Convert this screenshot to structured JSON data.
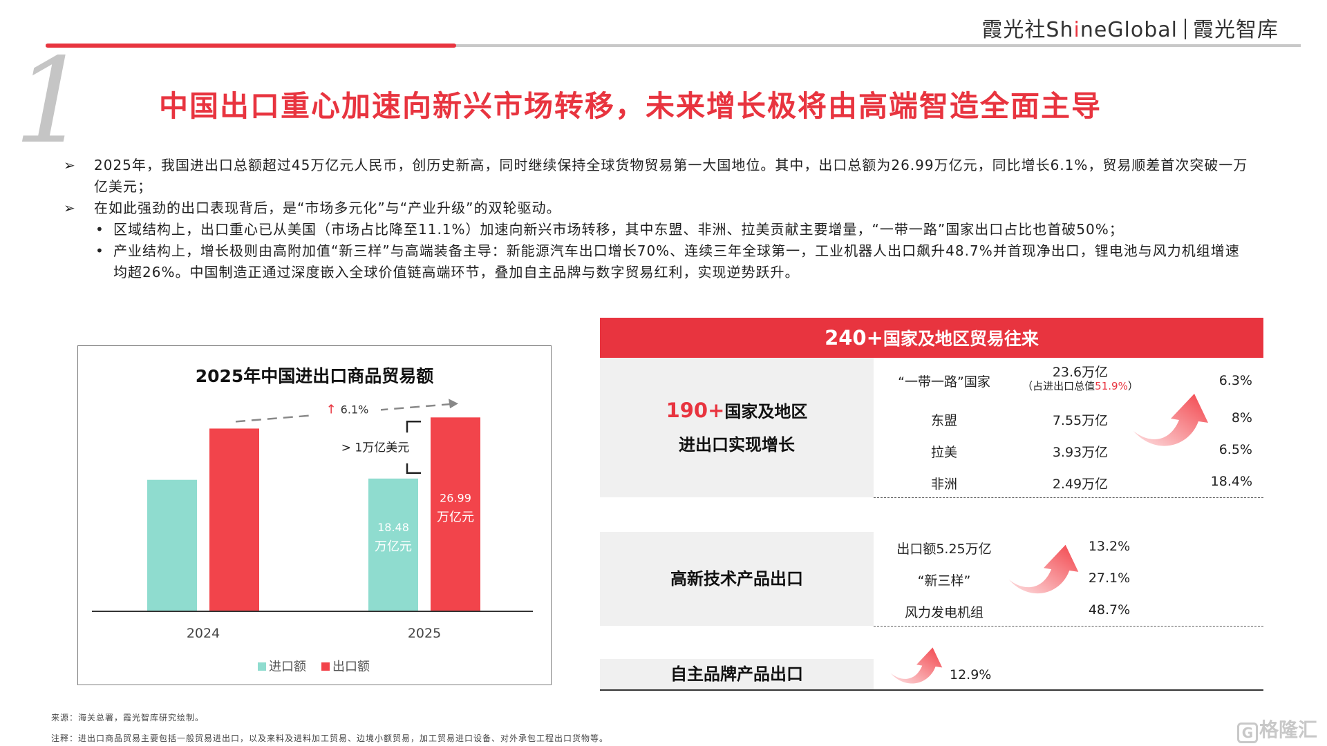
{
  "header": {
    "brand_cn": "霞光社",
    "brand_en_pre": "Sh",
    "brand_en_i": "i",
    "brand_en_post": "neGlobal",
    "brand_think": "霞光智库",
    "accent": "#e8343f"
  },
  "section_number": "1",
  "title": "中国出口重心加速向新兴市场转移，未来增长极将由高端智造全面主导",
  "bullets": [
    {
      "marker": "➢",
      "text": "2025年，我国进出口总额超过45万亿元人民币，创历史新高，同时继续保持全球货物贸易第一大国地位。其中，出口总额为26.99万亿元，同比增长6.1%，贸易顺差首次突破一万亿美元；"
    },
    {
      "marker": "➢",
      "text": "在如此强劲的出口表现背后，是“市场多元化”与“产业升级”的双轮驱动。"
    }
  ],
  "sub_bullets": [
    {
      "marker": "•",
      "text": "区域结构上，出口重心已从美国（市场占比降至11.1%）加速向新兴市场转移，其中东盟、非洲、拉美贡献主要增量，“一带一路”国家出口占比也首破50%；"
    },
    {
      "marker": "•",
      "text": "产业结构上，增长极则由高附加值“新三样”与高端装备主导：新能源汽车出口增长70%、连续三年全球第一，工业机器人出口飙升48.7%并首现净出口，锂电池与风力机组增速均超26%。中国制造正通过深度嵌入全球价值链高端环节，叠加自主品牌与数字贸易红利，实现逆势跃升。"
    }
  ],
  "chart_data": {
    "type": "bar",
    "title": "2025年中国进出口商品贸易额",
    "categories": [
      "2024",
      "2025"
    ],
    "series": [
      {
        "name": "进口额",
        "values": [
          18.3,
          18.48
        ],
        "color": "#8fdccf"
      },
      {
        "name": "出口额",
        "values": [
          25.44,
          26.99
        ],
        "color": "#f2444b"
      }
    ],
    "data_labels": {
      "import_2025_value": "18.48",
      "import_2025_unit": "万亿元",
      "export_2025_value": "26.99",
      "export_2025_unit": "万亿元"
    },
    "annotations": {
      "growth_arrow": "↑",
      "growth": "6.1%",
      "surplus": "> 1万亿美元"
    },
    "ylim": [
      0,
      30
    ],
    "legend_position": "bottom",
    "grid": false
  },
  "right_panel": {
    "header_num": "240+",
    "header_text": "国家及地区贸易往来",
    "block1": {
      "label_num": "190+",
      "label_text1": "国家及地区",
      "label_text2": "进出口实现增长",
      "rows": [
        {
          "name": "“一带一路”国家",
          "value": "23.6万亿",
          "note_pre": "（占进出口总值",
          "note_red": "51.9%",
          "note_post": "）",
          "pct": "6.3%"
        },
        {
          "name": "东盟",
          "value": "7.55万亿",
          "pct": "8%"
        },
        {
          "name": "拉美",
          "value": "3.93万亿",
          "pct": "6.5%"
        },
        {
          "name": "非洲",
          "value": "2.49万亿",
          "pct": "18.4%"
        }
      ]
    },
    "block2": {
      "label": "高新技术产品出口",
      "rows": [
        {
          "name": "出口额5.25万亿",
          "pct": "13.2%"
        },
        {
          "name": "“新三样”",
          "pct": "27.1%"
        },
        {
          "name": "风力发电机组",
          "pct": "48.7%"
        }
      ]
    },
    "block3": {
      "label": "自主品牌产品出口",
      "pct": "12.9%"
    }
  },
  "footer": {
    "source": "来源：海关总署，霞光智库研究绘制。",
    "note": "注释：进出口商品贸易主要包括一般贸易进出口，以及来料及进料加工贸易、边境小额贸易，加工贸易进口设备、对外承包工程出口货物等。"
  },
  "watermark": {
    "glyph": "G",
    "text": "格隆汇"
  }
}
